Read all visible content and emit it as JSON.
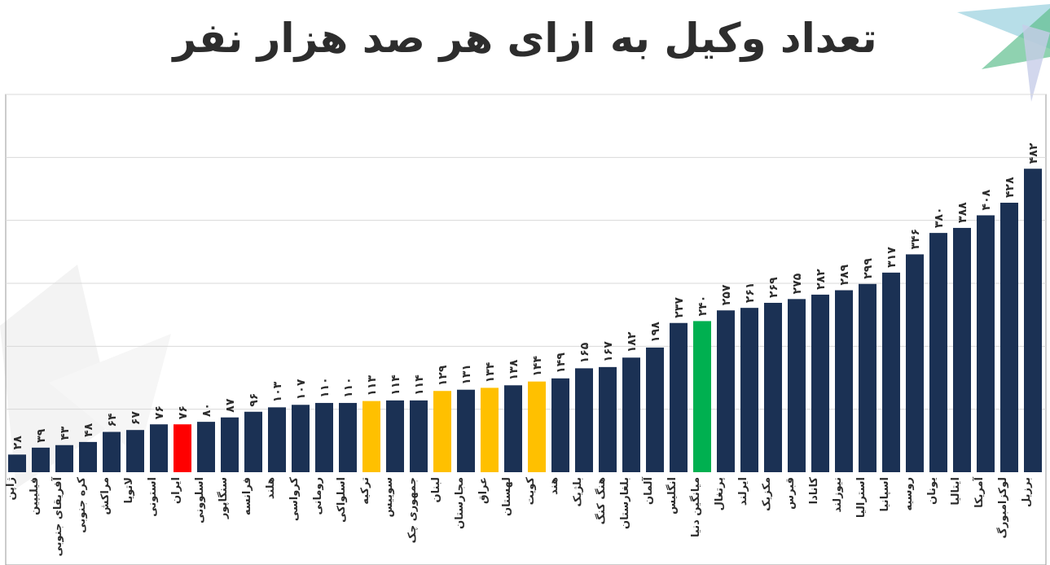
{
  "page": {
    "title": "تعداد وکیل به ازای هر صد هزار نفر"
  },
  "colors": {
    "default": "#1b3154",
    "highlight_red": "#ff0000",
    "highlight_yellow": "#ffc000",
    "highlight_green": "#00b050",
    "grid": "#d9d9d9",
    "frame": "#9a9a9a",
    "text": "#2d2d2d"
  },
  "chart_data": {
    "type": "bar",
    "title": "تعداد وکیل به ازای هر صد هزار نفر",
    "grid": true,
    "ylim": [
      0,
      600
    ],
    "y_gridlines": [
      100,
      200,
      300,
      400,
      500,
      600
    ],
    "categories": [
      "ژاپن",
      "فیلیپین",
      "آفریقای جنوبی",
      "کره جنوبی",
      "مراکش",
      "لاتویا",
      "استونی",
      "ایران",
      "اسلوونی",
      "سنگاپور",
      "فرانسه",
      "هلند",
      "کرواسی",
      "رومانی",
      "اسلواکی",
      "ترکیه",
      "سوییس",
      "جمهوری چک",
      "لبنان",
      "مجارستان",
      "عراق",
      "لهستان",
      "کویت",
      "هند",
      "بلژیک",
      "هنگ کنگ",
      "بلغارستان",
      "آلمان",
      "انگلیس",
      "میانگین دنیا",
      "پرتغال",
      "ایرلند",
      "مکزیک",
      "قبرس",
      "کانادا",
      "نیوزلند",
      "استرالیا",
      "اسپانیا",
      "روسیه",
      "یونان",
      "ایتالیا",
      "آمریکا",
      "لوکزامبورگ",
      "برزیل"
    ],
    "value_labels": [
      "۲۸",
      "۳۹",
      "۴۳",
      "۴۸",
      "۶۴",
      "۶۷",
      "۷۶",
      "۷۶",
      "۸۰",
      "۸۷",
      "۹۶",
      "۱۰۳",
      "۱۰۷",
      "۱۱۰",
      "۱۱۰",
      "۱۱۳",
      "۱۱۴",
      "۱۱۴",
      "۱۲۹",
      "۱۳۱",
      "۱۳۴",
      "۱۳۸",
      "۱۴۴",
      "۱۴۹",
      "۱۶۵",
      "۱۶۷",
      "۱۸۲",
      "۱۹۸",
      "۲۳۷",
      "۲۴۰",
      "۲۵۷",
      "۲۶۱",
      "۲۶۹",
      "۲۷۵",
      "۲۸۲",
      "۲۸۹",
      "۲۹۹",
      "۳۱۷",
      "۳۴۶",
      "۳۸۰",
      "۳۸۸",
      "۴۰۸",
      "۴۲۸",
      "۴۸۲"
    ],
    "values": [
      28,
      39,
      43,
      48,
      64,
      67,
      76,
      76,
      80,
      87,
      96,
      103,
      107,
      110,
      110,
      113,
      114,
      114,
      129,
      131,
      134,
      138,
      144,
      149,
      165,
      167,
      182,
      198,
      237,
      240,
      257,
      261,
      269,
      275,
      282,
      289,
      299,
      317,
      346,
      380,
      388,
      408,
      428,
      482
    ],
    "bar_colors": [
      "default",
      "default",
      "default",
      "default",
      "default",
      "default",
      "default",
      "highlight_red",
      "default",
      "default",
      "default",
      "default",
      "default",
      "default",
      "default",
      "highlight_yellow",
      "default",
      "default",
      "highlight_yellow",
      "default",
      "highlight_yellow",
      "default",
      "highlight_yellow",
      "default",
      "default",
      "default",
      "default",
      "default",
      "default",
      "highlight_green",
      "default",
      "default",
      "default",
      "default",
      "default",
      "default",
      "default",
      "default",
      "default",
      "default",
      "default",
      "default",
      "default",
      "default"
    ]
  }
}
